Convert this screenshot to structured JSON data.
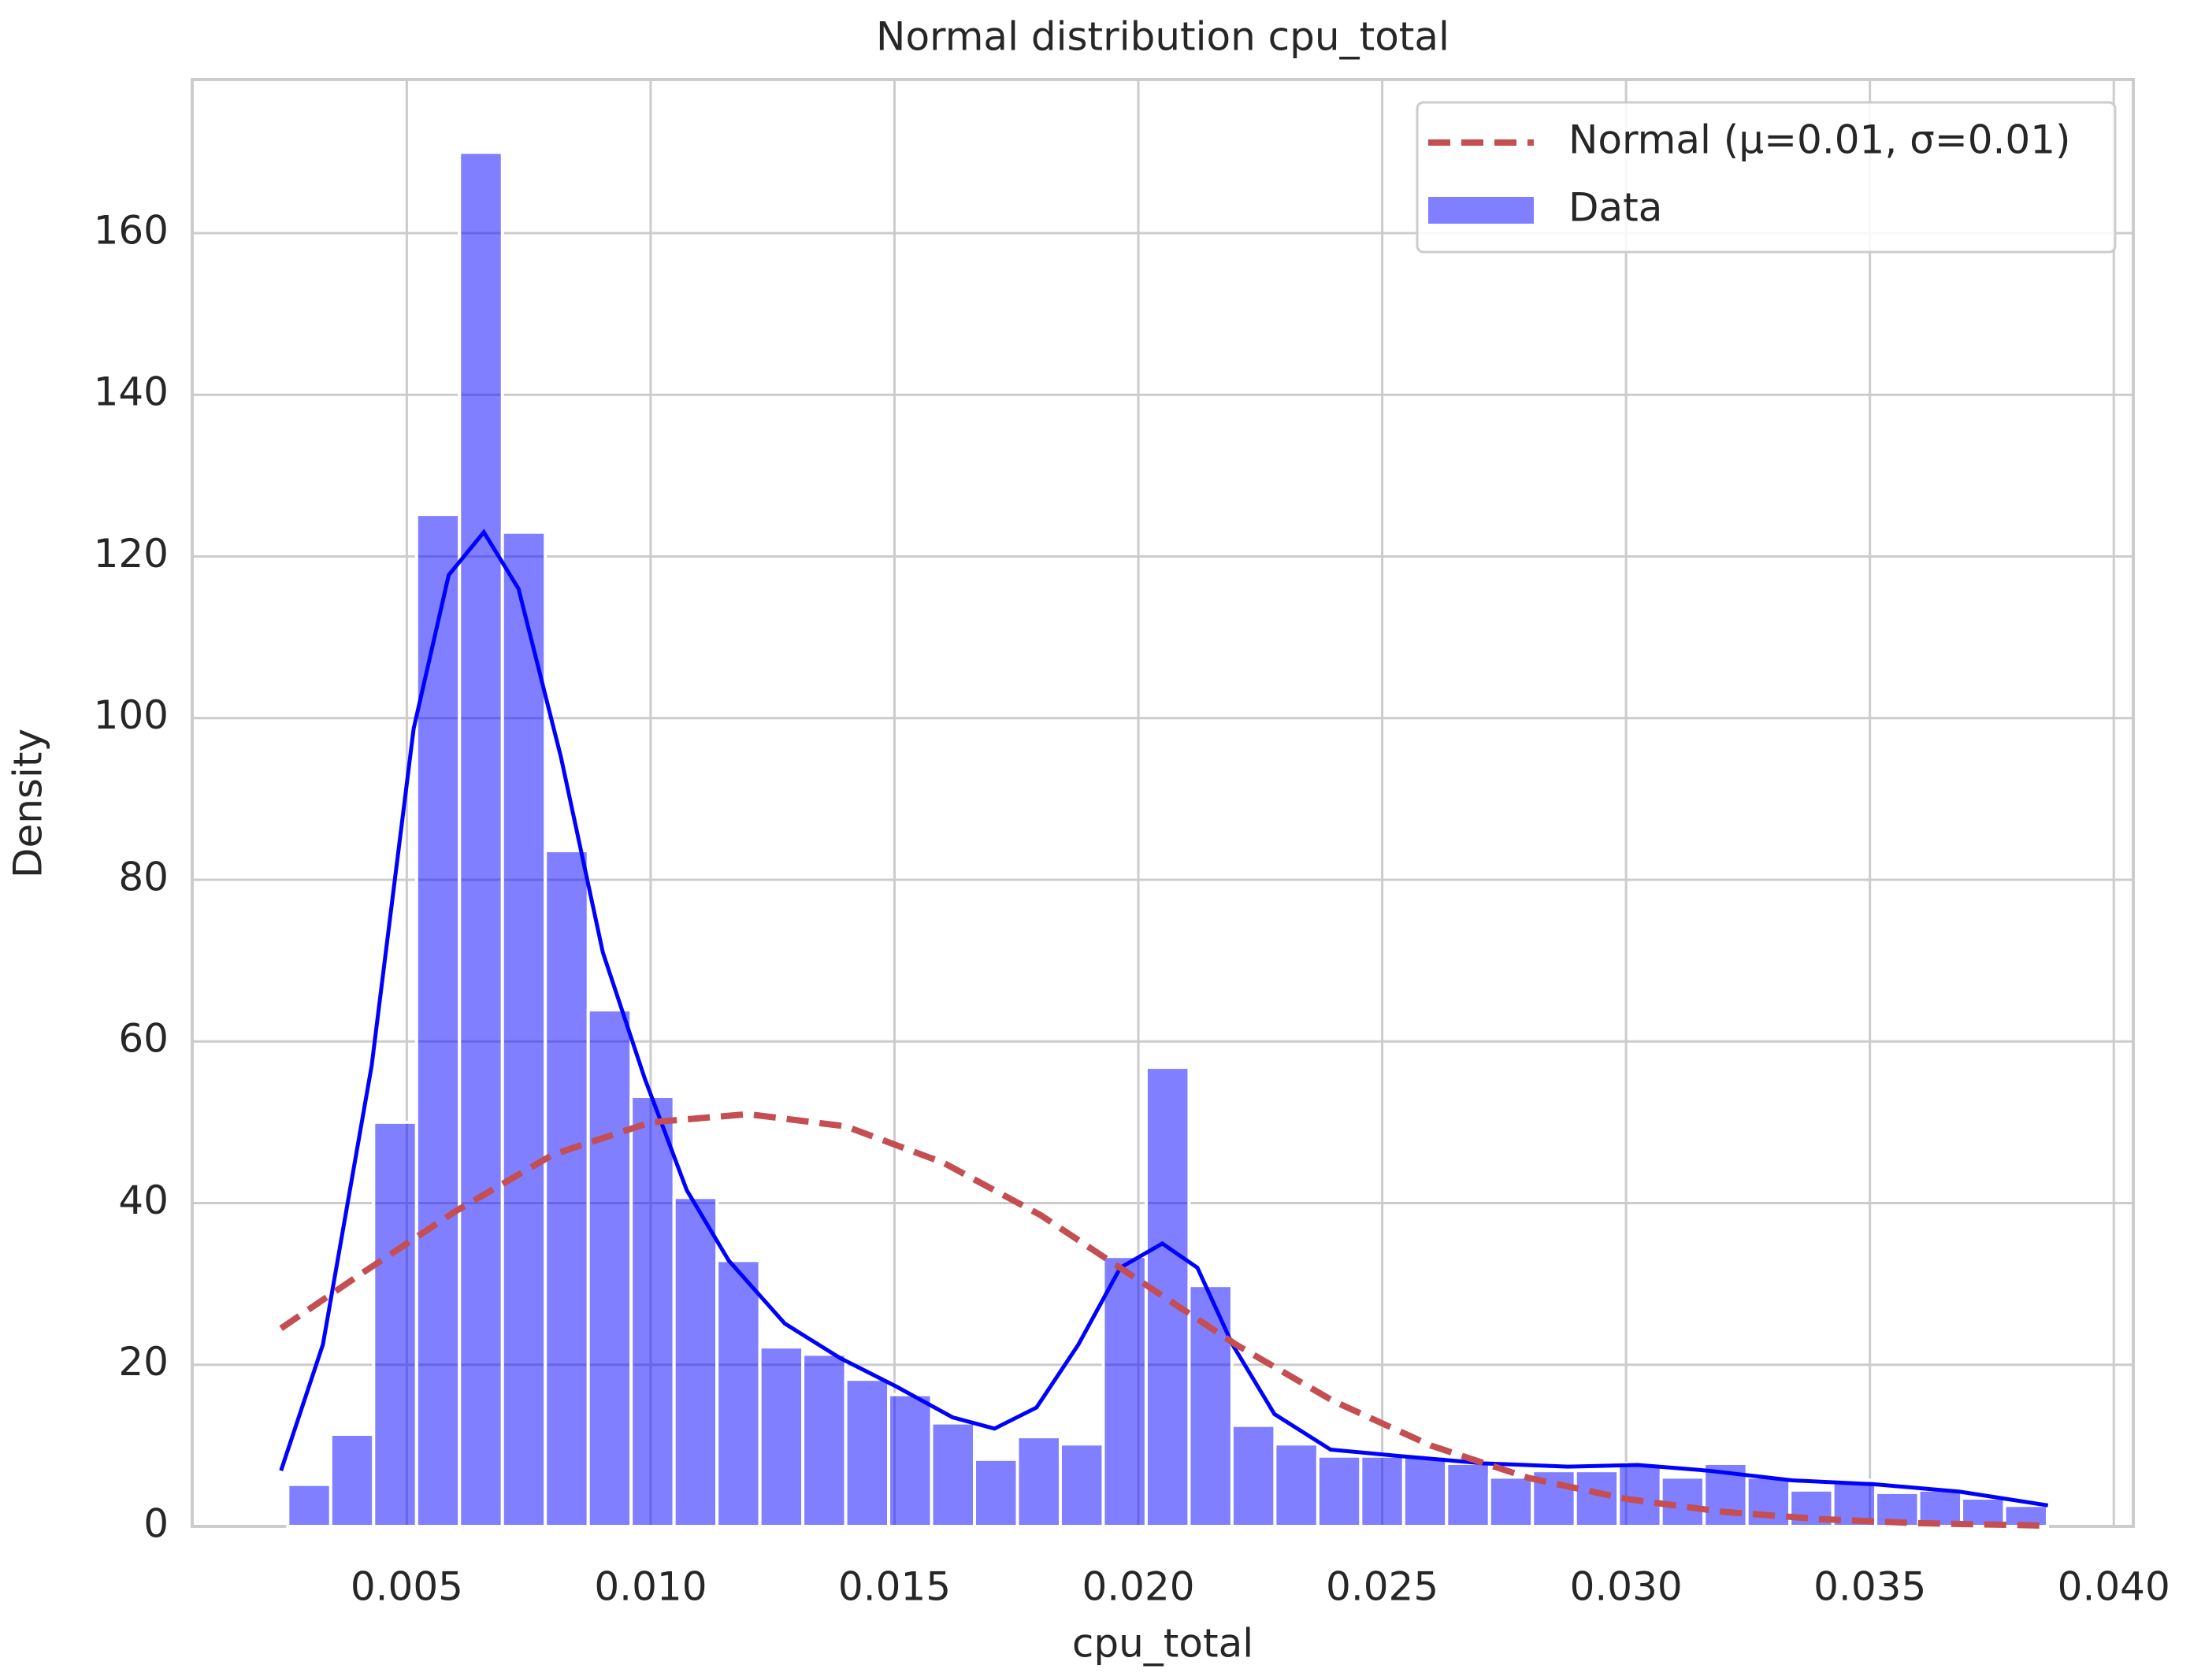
{
  "chart_data": {
    "type": "histogram",
    "title": "Normal distribution cpu_total",
    "x_label": "cpu_total",
    "y_label": "Density",
    "name": "Data",
    "color": "#0000ff",
    "opacity": 0.5,
    "bins": [
      0.00256,
      0.00344,
      0.00432,
      0.0052,
      0.00608,
      0.00696,
      0.00784,
      0.00872,
      0.0096,
      0.01048,
      0.01136,
      0.01224,
      0.01312,
      0.014,
      0.01488,
      0.01576,
      0.01664,
      0.01752,
      0.0184,
      0.01928,
      0.02016,
      0.02104,
      0.02192,
      0.0228,
      0.02368,
      0.02456,
      0.02544,
      0.02632,
      0.0272,
      0.02808,
      0.02896,
      0.02984,
      0.03072,
      0.0316,
      0.03248,
      0.03336,
      0.03424,
      0.03512,
      0.036,
      0.03688,
      0.03776,
      0.03864
    ],
    "values": [
      5.2,
      11.4,
      50,
      125.2,
      170,
      123,
      83.6,
      63.9,
      53.2,
      40.7,
      32.9,
      22.2,
      21.3,
      18.2,
      16.3,
      12.8,
      8.3,
      11.1,
      10.2,
      33.4,
      56.8,
      29.8,
      12.5,
      10.2,
      8.7,
      8.7,
      8.7,
      7.8,
      6.1,
      6.9,
      6.9,
      7.8,
      6.1,
      7.8,
      6.1,
      4.5,
      5.7,
      4.2,
      4.5,
      3.5,
      2.6
    ],
    "kde": {
      "color": "#0000ff",
      "x": [
        0.00242,
        0.00328,
        0.00428,
        0.00514,
        0.00586,
        0.00658,
        0.00729,
        0.00816,
        0.00902,
        0.00988,
        0.01074,
        0.0116,
        0.01275,
        0.01389,
        0.01504,
        0.01619,
        0.01705,
        0.01791,
        0.01877,
        0.01963,
        0.02049,
        0.02121,
        0.02193,
        0.02279,
        0.02394,
        0.02537,
        0.02709,
        0.02881,
        0.03024,
        0.03168,
        0.0334,
        0.03512,
        0.03684,
        0.03865
      ],
      "values": [
        6.9,
        22.5,
        57,
        98.7,
        117.7,
        123,
        116,
        95.2,
        71,
        55.4,
        41.6,
        32.9,
        25.1,
        20.8,
        17.3,
        13.5,
        12.1,
        14.7,
        22.5,
        32,
        35,
        32,
        22.5,
        13.9,
        9.5,
        8.7,
        7.8,
        7.4,
        7.6,
        6.9,
        5.7,
        5.2,
        4.3,
        2.6
      ]
    },
    "normal": {
      "name": "Normal (μ=0.01, σ=0.01)",
      "color": "#c44e52",
      "dashed": true,
      "x": [
        0.00242,
        0.004,
        0.006,
        0.008,
        0.01,
        0.012,
        0.014,
        0.016,
        0.018,
        0.02,
        0.022,
        0.024,
        0.026,
        0.028,
        0.03,
        0.032,
        0.034,
        0.036,
        0.0386
      ],
      "values": [
        24.5,
        31,
        39,
        46,
        50,
        51,
        49.5,
        45,
        38.5,
        30.5,
        22.5,
        15.5,
        10,
        6,
        3.4,
        1.8,
        0.9,
        0.4,
        0.1
      ]
    },
    "xlim": [
      0.0006,
      0.0404
    ],
    "ylim": [
      0,
      179
    ],
    "xticks": [
      0.005,
      {
        "value": 0.01,
        "label": "0.010"
      },
      0.015,
      {
        "value": 0.02,
        "label": "0.020"
      },
      0.025,
      {
        "value": 0.03,
        "label": "0.030"
      },
      0.035,
      {
        "value": 0.04,
        "label": "0.040"
      }
    ],
    "yticks": [
      0,
      20,
      40,
      60,
      80,
      100,
      120,
      140,
      160
    ],
    "grid": true,
    "legend": "upper right"
  }
}
